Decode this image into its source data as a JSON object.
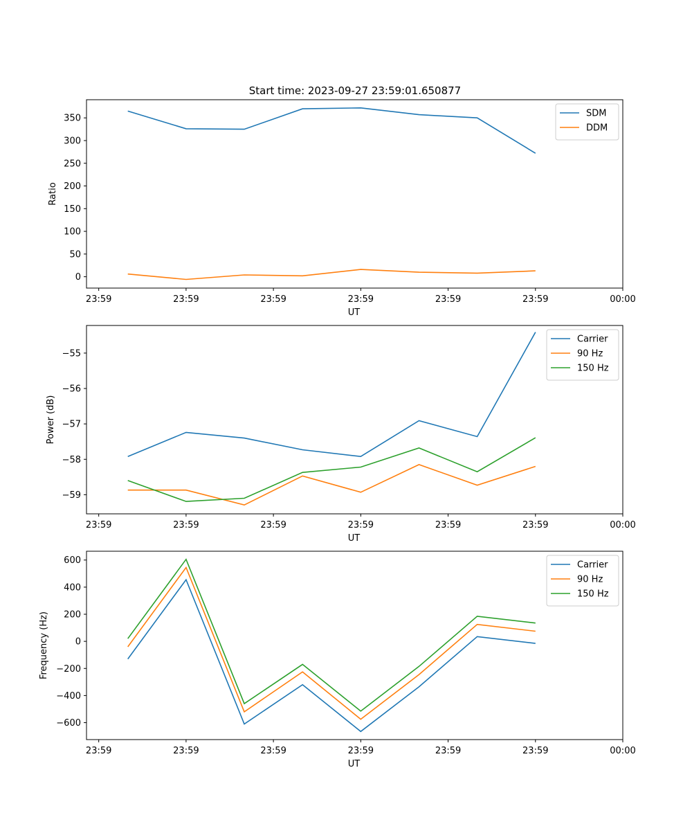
{
  "figure_title": "Start time: 2023-09-27 23:59:01.650877",
  "colors": {
    "blue": "#1f77b4",
    "orange": "#ff7f0e",
    "green": "#2ca02c"
  },
  "chart_data": [
    {
      "type": "line",
      "title": "Start time: 2023-09-27 23:59:01.650877",
      "xlabel": "UT",
      "ylabel": "Ratio",
      "x": [
        1,
        2,
        3,
        4,
        5,
        6,
        7,
        8
      ],
      "xlim": [
        0.29,
        9.5
      ],
      "xticks": [
        0.5,
        2,
        3.5,
        5,
        6.5,
        8,
        9.5
      ],
      "xticklabels": [
        "23:59",
        "23:59",
        "23:59",
        "23:59",
        "23:59",
        "23:59",
        "00:00"
      ],
      "ylim": [
        -25,
        390
      ],
      "yticks": [
        0,
        50,
        100,
        150,
        200,
        250,
        300,
        350
      ],
      "yticklabels": [
        "0",
        "50",
        "100",
        "150",
        "200",
        "250",
        "300",
        "350"
      ],
      "legend_position": "top-right",
      "series": [
        {
          "name": "SDM",
          "color": "#1f77b4",
          "values": [
            365,
            326,
            325,
            370,
            372,
            357,
            350,
            272
          ]
        },
        {
          "name": "DDM",
          "color": "#ff7f0e",
          "values": [
            6,
            -6,
            4,
            2,
            16,
            10,
            8,
            13
          ]
        }
      ]
    },
    {
      "type": "line",
      "xlabel": "UT",
      "ylabel": "Power (dB)",
      "x": [
        1,
        2,
        3,
        4,
        5,
        6,
        7,
        8
      ],
      "xlim": [
        0.29,
        9.5
      ],
      "xticks": [
        0.5,
        2,
        3.5,
        5,
        6.5,
        8,
        9.5
      ],
      "xticklabels": [
        "23:59",
        "23:59",
        "23:59",
        "23:59",
        "23:59",
        "23:59",
        "00:00"
      ],
      "ylim": [
        -59.54,
        -54.22
      ],
      "yticks": [
        -59,
        -58,
        -57,
        -56,
        -55
      ],
      "yticklabels": [
        "−59",
        "−58",
        "−57",
        "−56",
        "−55"
      ],
      "legend_position": "top-right",
      "series": [
        {
          "name": "Carrier",
          "color": "#1f77b4",
          "values": [
            -57.92,
            -57.24,
            -57.4,
            -57.73,
            -57.92,
            -56.91,
            -57.36,
            -54.41
          ]
        },
        {
          "name": "90 Hz",
          "color": "#ff7f0e",
          "values": [
            -58.87,
            -58.87,
            -59.29,
            -58.47,
            -58.93,
            -58.15,
            -58.73,
            -58.2
          ]
        },
        {
          "name": "150 Hz",
          "color": "#2ca02c",
          "values": [
            -58.6,
            -59.19,
            -59.1,
            -58.37,
            -58.22,
            -57.68,
            -58.35,
            -57.39
          ]
        }
      ]
    },
    {
      "type": "line",
      "xlabel": "UT",
      "ylabel": "Frequency (Hz)",
      "x": [
        1,
        2,
        3,
        4,
        5,
        6,
        7,
        8
      ],
      "xlim": [
        0.29,
        9.5
      ],
      "xticks": [
        0.5,
        2,
        3.5,
        5,
        6.5,
        8,
        9.5
      ],
      "xticklabels": [
        "23:59",
        "23:59",
        "23:59",
        "23:59",
        "23:59",
        "23:59",
        "00:00"
      ],
      "ylim": [
        -725,
        665
      ],
      "yticks": [
        -600,
        -400,
        -200,
        0,
        200,
        400,
        600
      ],
      "yticklabels": [
        "−600",
        "−400",
        "−200",
        "0",
        "200",
        "400",
        "600"
      ],
      "legend_position": "top-right",
      "series": [
        {
          "name": "Carrier",
          "color": "#1f77b4",
          "values": [
            -130,
            455,
            -610,
            -320,
            -665,
            -335,
            35,
            -15
          ]
        },
        {
          "name": "90 Hz",
          "color": "#ff7f0e",
          "values": [
            -40,
            545,
            -520,
            -225,
            -575,
            -245,
            125,
            75
          ]
        },
        {
          "name": "150 Hz",
          "color": "#2ca02c",
          "values": [
            20,
            605,
            -460,
            -170,
            -515,
            -185,
            185,
            135
          ]
        }
      ]
    }
  ]
}
